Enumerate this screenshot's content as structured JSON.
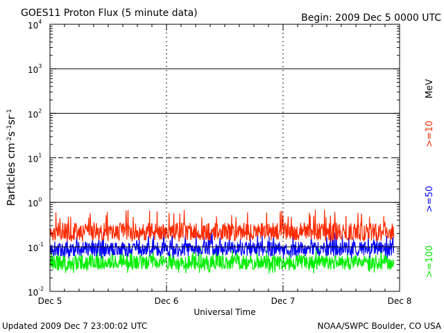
{
  "header": {
    "title": "GOES11 Proton Flux (5 minute data)",
    "begin": "Begin: 2009 Dec 5 0000 UTC"
  },
  "footer": {
    "updated": "Updated 2009 Dec  7 23:00:02 UTC",
    "credit": "NOAA/SWPC Boulder, CO USA"
  },
  "chart_data": {
    "type": "line",
    "xlabel": "Universal Time",
    "ylabel": "Particles cm-2s-1sr-1",
    "x_ticks": [
      "Dec 5",
      "Dec 6",
      "Dec 7",
      "Dec 8"
    ],
    "x_domain_days": [
      0,
      3
    ],
    "y_scale": "log",
    "ylim": [
      0.01,
      10000
    ],
    "y_ticks": [
      {
        "base": "10",
        "exp": "4"
      },
      {
        "base": "10",
        "exp": "3"
      },
      {
        "base": "10",
        "exp": "2"
      },
      {
        "base": "10",
        "exp": "1"
      },
      {
        "base": "10",
        "exp": "0"
      },
      {
        "base": "10",
        "exp": "-1"
      },
      {
        "base": "10",
        "exp": "-2"
      }
    ],
    "threshold_lines": [
      {
        "value": 1000,
        "style": "solid"
      },
      {
        "value": 100,
        "style": "solid"
      },
      {
        "value": 10,
        "style": "dashed"
      },
      {
        "value": 1,
        "style": "solid"
      },
      {
        "value": 0.1,
        "style": "solid"
      }
    ],
    "legend_unit": "MeV",
    "series": [
      {
        "name": ">=10",
        "color": "#ff2a00",
        "level_min": 0.13,
        "level_max": 0.7,
        "typical": 0.22
      },
      {
        "name": ">=50",
        "color": "#0000ff",
        "level_min": 0.055,
        "level_max": 0.22,
        "typical": 0.09
      },
      {
        "name": ">=100",
        "color": "#00ee00",
        "level_min": 0.025,
        "level_max": 0.1,
        "typical": 0.045
      }
    ]
  }
}
